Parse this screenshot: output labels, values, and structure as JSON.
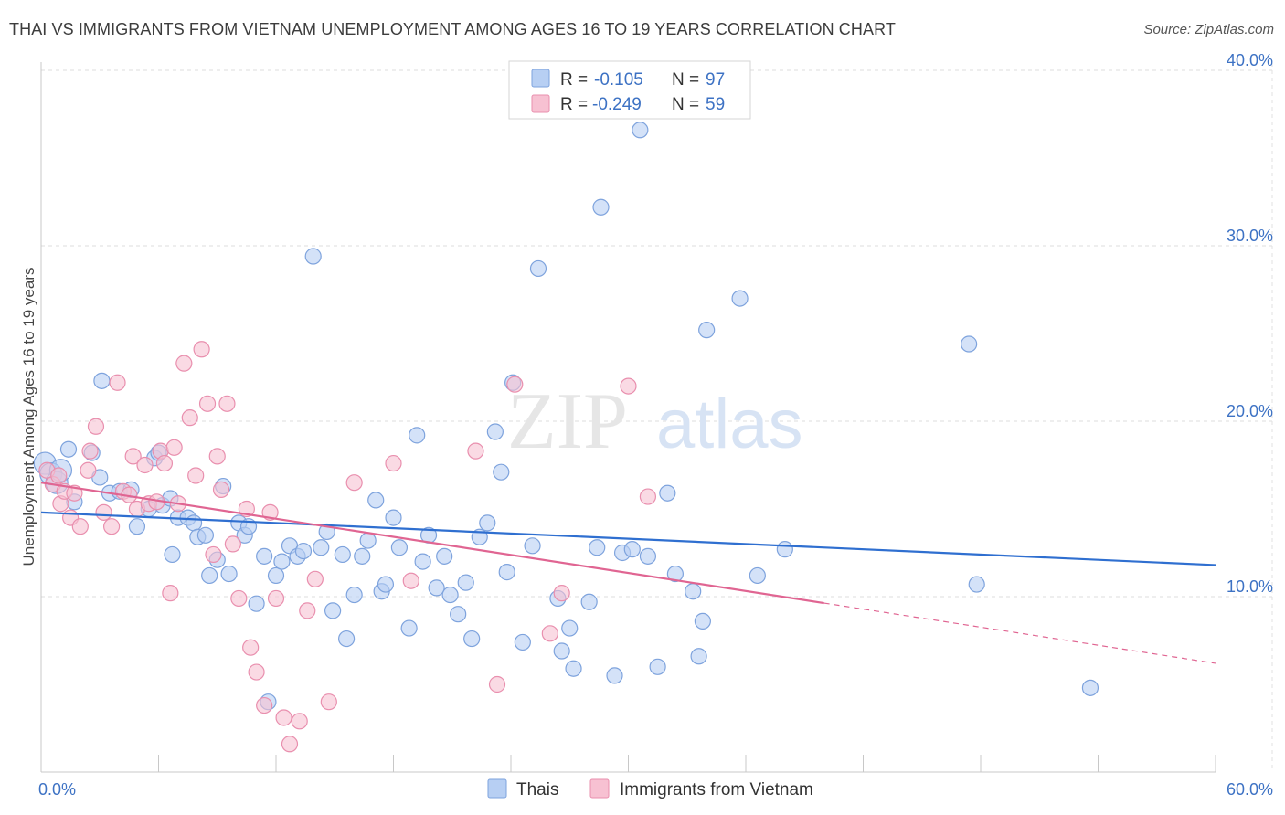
{
  "header": {
    "title": "THAI VS IMMIGRANTS FROM VIETNAM UNEMPLOYMENT AMONG AGES 16 TO 19 YEARS CORRELATION CHART",
    "source": "Source: ZipAtlas.com"
  },
  "watermark": {
    "part1": "ZIP",
    "part2": "atlas"
  },
  "legend": {
    "r_label": "R =",
    "n_label": "N =",
    "rows": [
      {
        "r": "-0.105",
        "n": "97"
      },
      {
        "r": "-0.249",
        "n": "59"
      }
    ]
  },
  "chart_data": {
    "type": "scatter",
    "title": "THAI VS IMMIGRANTS FROM VIETNAM UNEMPLOYMENT AMONG AGES 16 TO 19 YEARS CORRELATION CHART",
    "xlabel": "",
    "ylabel": "Unemployment Among Ages 16 to 19 years",
    "xlim": [
      0,
      60
    ],
    "ylim": [
      0,
      40
    ],
    "x_tick_labels": [
      "0.0%",
      "60.0%"
    ],
    "y_ticks": [
      {
        "value": 10,
        "label": "10.0%"
      },
      {
        "value": 20,
        "label": "20.0%"
      },
      {
        "value": 30,
        "label": "30.0%"
      },
      {
        "value": 40,
        "label": "40.0%"
      }
    ],
    "grid": true,
    "legend_position": "top-center",
    "colors": {
      "thais_fill": "#b7cff3",
      "thais_stroke": "#7ea3dd",
      "thais_line": "#2f6fd0",
      "vietnam_fill": "#f7c1d2",
      "vietnam_stroke": "#e98fae",
      "vietnam_line": "#e06592"
    },
    "series": [
      {
        "name": "Thais",
        "r": -0.105,
        "n": 97,
        "trend": {
          "x0": 0,
          "y0": 14.8,
          "x1": 60,
          "y1": 11.8,
          "dashed_from": null
        },
        "points": [
          [
            0.2,
            17.6
          ],
          [
            0.5,
            17.0
          ],
          [
            0.8,
            16.5
          ],
          [
            1.0,
            17.2
          ],
          [
            1.4,
            18.4
          ],
          [
            1.7,
            15.4
          ],
          [
            2.6,
            18.2
          ],
          [
            3.0,
            16.8
          ],
          [
            3.1,
            22.3
          ],
          [
            3.5,
            15.9
          ],
          [
            4.0,
            16.0
          ],
          [
            4.6,
            16.1
          ],
          [
            4.9,
            14.0
          ],
          [
            5.5,
            15.0
          ],
          [
            5.8,
            17.9
          ],
          [
            6.0,
            18.2
          ],
          [
            6.2,
            15.2
          ],
          [
            6.6,
            15.6
          ],
          [
            6.7,
            12.4
          ],
          [
            7.0,
            14.5
          ],
          [
            7.5,
            14.5
          ],
          [
            7.8,
            14.2
          ],
          [
            8.0,
            13.4
          ],
          [
            8.4,
            13.5
          ],
          [
            8.6,
            11.2
          ],
          [
            9.0,
            12.1
          ],
          [
            9.3,
            16.3
          ],
          [
            9.6,
            11.3
          ],
          [
            10.1,
            14.2
          ],
          [
            10.4,
            13.5
          ],
          [
            10.6,
            14.0
          ],
          [
            11.0,
            9.6
          ],
          [
            11.4,
            12.3
          ],
          [
            11.6,
            4.0
          ],
          [
            12.0,
            11.2
          ],
          [
            12.3,
            12.0
          ],
          [
            12.7,
            12.9
          ],
          [
            13.1,
            12.3
          ],
          [
            13.4,
            12.6
          ],
          [
            13.9,
            29.4
          ],
          [
            14.3,
            12.8
          ],
          [
            14.6,
            13.7
          ],
          [
            14.9,
            9.2
          ],
          [
            15.4,
            12.4
          ],
          [
            15.6,
            7.6
          ],
          [
            16.0,
            10.1
          ],
          [
            16.4,
            12.3
          ],
          [
            16.7,
            13.2
          ],
          [
            17.1,
            15.5
          ],
          [
            17.4,
            10.3
          ],
          [
            17.6,
            10.7
          ],
          [
            18.0,
            14.5
          ],
          [
            18.3,
            12.8
          ],
          [
            18.8,
            8.2
          ],
          [
            19.2,
            19.2
          ],
          [
            19.5,
            12.0
          ],
          [
            19.8,
            13.5
          ],
          [
            20.2,
            10.5
          ],
          [
            20.6,
            12.3
          ],
          [
            20.9,
            10.1
          ],
          [
            21.3,
            9.0
          ],
          [
            21.7,
            10.8
          ],
          [
            22.0,
            7.6
          ],
          [
            22.4,
            13.4
          ],
          [
            22.8,
            14.2
          ],
          [
            23.2,
            19.4
          ],
          [
            23.5,
            17.1
          ],
          [
            23.8,
            11.4
          ],
          [
            24.1,
            22.2
          ],
          [
            24.6,
            7.4
          ],
          [
            25.1,
            12.9
          ],
          [
            25.4,
            28.7
          ],
          [
            26.4,
            9.9
          ],
          [
            26.6,
            6.9
          ],
          [
            27.0,
            8.2
          ],
          [
            27.2,
            5.9
          ],
          [
            28.0,
            9.7
          ],
          [
            28.4,
            12.8
          ],
          [
            28.6,
            32.2
          ],
          [
            29.3,
            5.5
          ],
          [
            29.7,
            12.5
          ],
          [
            30.2,
            12.7
          ],
          [
            30.6,
            36.6
          ],
          [
            31.0,
            12.3
          ],
          [
            31.5,
            6.0
          ],
          [
            32.0,
            15.9
          ],
          [
            32.4,
            11.3
          ],
          [
            33.3,
            10.3
          ],
          [
            33.6,
            6.6
          ],
          [
            33.8,
            8.6
          ],
          [
            34.0,
            25.2
          ],
          [
            35.7,
            27.0
          ],
          [
            36.6,
            11.2
          ],
          [
            38.0,
            12.7
          ],
          [
            47.4,
            24.4
          ],
          [
            47.8,
            10.7
          ],
          [
            53.6,
            4.8
          ]
        ]
      },
      {
        "name": "Immigrants from Vietnam",
        "r": -0.249,
        "n": 59,
        "trend": {
          "x0": 0,
          "y0": 16.5,
          "x1": 60,
          "y1": 6.2,
          "dashed_from": 40
        },
        "points": [
          [
            0.3,
            17.2
          ],
          [
            0.6,
            16.4
          ],
          [
            0.9,
            16.9
          ],
          [
            1.0,
            15.3
          ],
          [
            1.2,
            16.0
          ],
          [
            1.5,
            14.5
          ],
          [
            1.7,
            15.9
          ],
          [
            2.0,
            14.0
          ],
          [
            2.4,
            17.2
          ],
          [
            2.5,
            18.3
          ],
          [
            2.8,
            19.7
          ],
          [
            3.2,
            14.8
          ],
          [
            3.6,
            14.0
          ],
          [
            3.9,
            22.2
          ],
          [
            4.2,
            16.0
          ],
          [
            4.5,
            15.8
          ],
          [
            4.7,
            18.0
          ],
          [
            4.9,
            15.0
          ],
          [
            5.3,
            17.5
          ],
          [
            5.5,
            15.3
          ],
          [
            5.9,
            15.4
          ],
          [
            6.1,
            18.3
          ],
          [
            6.3,
            17.6
          ],
          [
            6.6,
            10.2
          ],
          [
            6.8,
            18.5
          ],
          [
            7.0,
            15.3
          ],
          [
            7.3,
            23.3
          ],
          [
            7.6,
            20.2
          ],
          [
            7.9,
            16.9
          ],
          [
            8.2,
            24.1
          ],
          [
            8.5,
            21.0
          ],
          [
            8.8,
            12.4
          ],
          [
            9.0,
            18.0
          ],
          [
            9.2,
            16.1
          ],
          [
            9.5,
            21.0
          ],
          [
            9.8,
            13.0
          ],
          [
            10.1,
            9.9
          ],
          [
            10.5,
            15.0
          ],
          [
            10.7,
            7.1
          ],
          [
            11.0,
            5.7
          ],
          [
            11.4,
            3.8
          ],
          [
            11.7,
            14.8
          ],
          [
            12.0,
            9.9
          ],
          [
            12.4,
            3.1
          ],
          [
            12.7,
            1.6
          ],
          [
            13.2,
            2.9
          ],
          [
            13.6,
            9.2
          ],
          [
            14.0,
            11.0
          ],
          [
            14.7,
            4.0
          ],
          [
            16.0,
            16.5
          ],
          [
            18.0,
            17.6
          ],
          [
            18.9,
            10.9
          ],
          [
            22.2,
            18.3
          ],
          [
            23.3,
            5.0
          ],
          [
            24.2,
            22.1
          ],
          [
            26.0,
            7.9
          ],
          [
            26.6,
            10.2
          ],
          [
            30.0,
            22.0
          ],
          [
            31.0,
            15.7
          ]
        ]
      }
    ]
  },
  "bottom_legend": {
    "items": [
      "Thais",
      "Immigrants from Vietnam"
    ]
  }
}
